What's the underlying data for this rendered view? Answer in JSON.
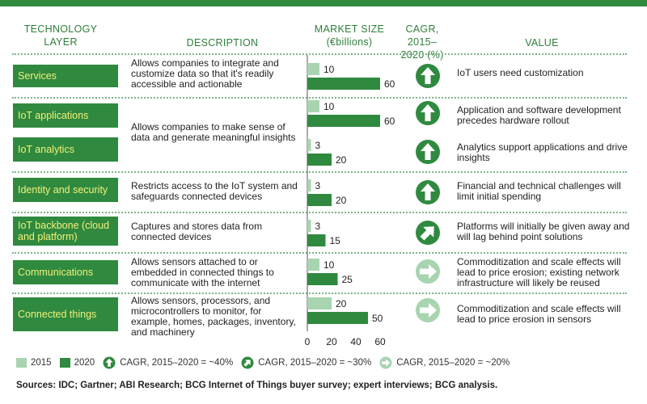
{
  "headers": {
    "layer": "TECHNOLOGY LAYER",
    "description": "DESCRIPTION",
    "market_size": "MARKET SIZE (€billions)",
    "cagr": "CAGR, 2015–2020 (%)",
    "value": "VALUE"
  },
  "colors": {
    "green_dark": "#2f8a3f",
    "bar_2015": "#a8d4b0",
    "bar_2020": "#2f8a3f",
    "label_text": "#f3f07a",
    "header_text": "#2f7f3b"
  },
  "rows": [
    {
      "labels": [
        "Services"
      ],
      "description": "Allows companies to integrate and customize data so that it's readily accessible and actionable",
      "value": "IoT users need customization"
    },
    {
      "labels": [
        "IoT applications",
        "IoT analytics"
      ],
      "description": "Allows companies to make sense of data and generate meaningful insights",
      "value_a": "Application and software development precedes hardware rollout",
      "value_b": "Analytics support applications and drive insights"
    },
    {
      "labels": [
        "Identity and security"
      ],
      "description": "Restricts access to the IoT system and safeguards connected devices",
      "value": "Financial and technical challenges will limit initial spending"
    },
    {
      "labels": [
        "IoT backbone (cloud and platform)"
      ],
      "description": "Captures and stores data from connected devices",
      "value": "Platforms will initially be given away and will lag behind point solutions"
    },
    {
      "labels": [
        "Communications"
      ],
      "description": "Allows sensors attached to or embedded in connected things to communicate with the internet",
      "value": "Commoditization and scale effects will lead to price erosion; existing network infrastructure will likely be reused"
    },
    {
      "labels": [
        "Connected things"
      ],
      "description": "Allows sensors, processors, and microcontrollers to monitor, for example, homes, packages, inventory, and machinery",
      "value": "Commoditization and scale effects will lead to price erosion in sensors"
    }
  ],
  "legend": {
    "y2015": "2015",
    "y2020": "2020",
    "cagr40": "CAGR, 2015–2020 = ~40%",
    "cagr30": "CAGR, 2015–2020 = ~30%",
    "cagr20": "CAGR, 2015–2020 = ~20%"
  },
  "sources": "Sources: IDC; Gartner; ABI Research; BCG Internet of Things buyer survey; expert interviews; BCG analysis.",
  "chart_data": {
    "type": "bar",
    "orientation": "horizontal",
    "categories": [
      "Services",
      "IoT applications",
      "IoT analytics",
      "Identity and security",
      "IoT backbone (cloud and platform)",
      "Communications",
      "Connected things"
    ],
    "series": [
      {
        "name": "2015",
        "values": [
          10,
          10,
          3,
          3,
          3,
          10,
          20
        ]
      },
      {
        "name": "2020",
        "values": [
          60,
          60,
          20,
          20,
          15,
          25,
          50
        ]
      }
    ],
    "cagr": [
      "~40%",
      "~40%",
      "~40%",
      "~40%",
      "~30%",
      "~20%",
      "~20%"
    ],
    "xlim": [
      0,
      60
    ],
    "xticks": [
      0,
      20,
      40,
      60
    ],
    "xlabel": "MARKET SIZE (€billions)",
    "grid": false,
    "legend_position": "bottom"
  }
}
